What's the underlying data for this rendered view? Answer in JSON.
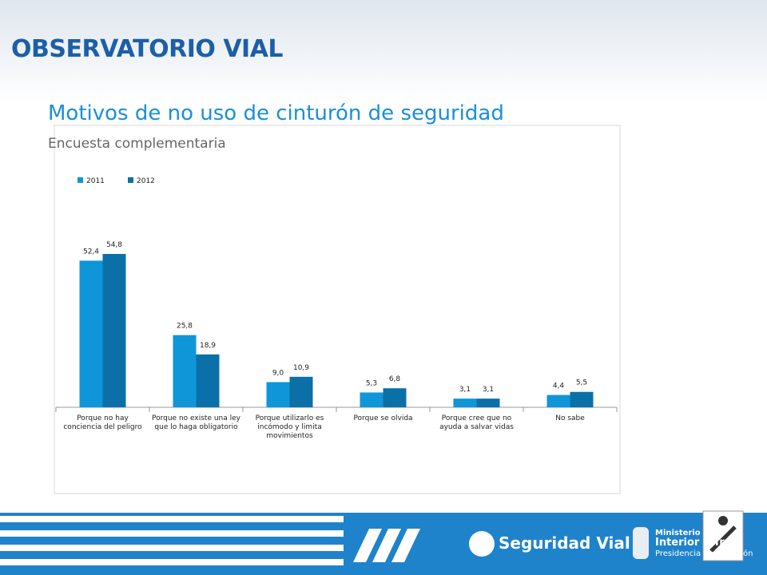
{
  "header": {
    "title": "OBSERVATORIO VIAL"
  },
  "footer": {
    "brand": "Seguridad Vial",
    "ministry": [
      "Ministerio del",
      "Interior y Tr",
      "Presidencia de la Nación"
    ]
  },
  "chart_data": {
    "type": "bar",
    "title": "Motivos de no uso de cinturón de seguridad",
    "subtitle": "Encuesta complementaria",
    "categories": [
      "Porque no hay conciencia del peligro",
      "Porque no existe una ley que lo haga obligatorio",
      "Porque utilizarlo es incómodo y limita movimientos",
      "Porque se olvida",
      "Porque cree que no ayuda a salvar vidas",
      "No sabe"
    ],
    "series": [
      {
        "name": "2011",
        "color": "#0f96d8",
        "values": [
          52.4,
          25.8,
          9.0,
          5.3,
          3.1,
          4.4
        ],
        "value_labels": [
          "52,4",
          "25,8",
          "9,0",
          "5,3",
          "3,1",
          "4,4"
        ]
      },
      {
        "name": "2012",
        "color": "#0b70a8",
        "values": [
          54.8,
          18.9,
          10.9,
          6.8,
          3.1,
          5.5
        ],
        "value_labels": [
          "54,8",
          "18,9",
          "10,9",
          "6,8",
          "3,1",
          "5,5"
        ]
      }
    ],
    "legend": "top-left"
  }
}
